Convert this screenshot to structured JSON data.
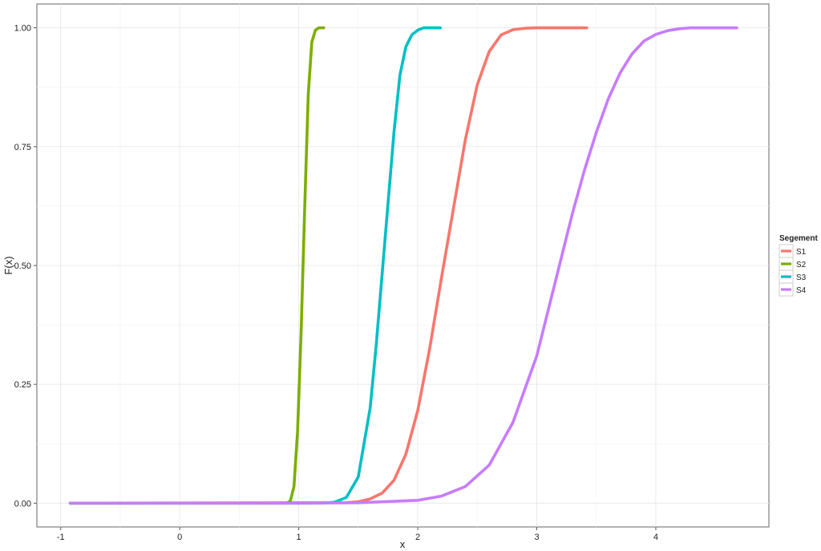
{
  "chart_data": {
    "type": "line",
    "xlabel": "x",
    "ylabel": "F(x)",
    "xlim": [
      -1.2,
      4.95
    ],
    "ylim": [
      -0.05,
      1.05
    ],
    "x_ticks": [
      -1,
      0,
      1,
      2,
      3,
      4
    ],
    "x_tick_labels": [
      "-1",
      "0",
      "1",
      "2",
      "3",
      "4"
    ],
    "y_ticks": [
      0,
      0.25,
      0.5,
      0.75,
      1
    ],
    "y_tick_labels": [
      "0.00",
      "0.25",
      "0.50",
      "0.75",
      "1.00"
    ],
    "grid": true,
    "legend": {
      "title": "Segement",
      "placement": "right"
    },
    "series": [
      {
        "name": "S1",
        "color": "#F8766D",
        "x": [
          -0.92,
          1.4,
          1.5,
          1.6,
          1.7,
          1.8,
          1.9,
          2.0,
          2.1,
          2.2,
          2.3,
          2.4,
          2.5,
          2.6,
          2.7,
          2.8,
          2.9,
          3.0,
          3.1,
          3.42
        ],
        "y": [
          0.0,
          0.001,
          0.003,
          0.009,
          0.021,
          0.048,
          0.103,
          0.195,
          0.325,
          0.475,
          0.62,
          0.765,
          0.88,
          0.95,
          0.985,
          0.996,
          0.999,
          1.0,
          1.0,
          1.0
        ]
      },
      {
        "name": "S2",
        "color": "#7CAE00",
        "x": [
          -0.92,
          0.9,
          0.93,
          0.96,
          0.99,
          1.02,
          1.05,
          1.08,
          1.11,
          1.14,
          1.17,
          1.21
        ],
        "y": [
          0.0,
          0.0,
          0.005,
          0.035,
          0.15,
          0.36,
          0.62,
          0.86,
          0.97,
          0.995,
          1.0,
          1.0
        ]
      },
      {
        "name": "S3",
        "color": "#00BFC4",
        "x": [
          -0.92,
          1.2,
          1.3,
          1.4,
          1.5,
          1.6,
          1.65,
          1.7,
          1.75,
          1.8,
          1.85,
          1.9,
          1.95,
          2.0,
          2.05,
          2.1,
          2.19
        ],
        "y": [
          0.0,
          0.0,
          0.002,
          0.012,
          0.055,
          0.2,
          0.33,
          0.48,
          0.63,
          0.78,
          0.9,
          0.96,
          0.985,
          0.995,
          1.0,
          1.0,
          1.0
        ]
      },
      {
        "name": "S4",
        "color": "#C77CFF",
        "x": [
          -0.92,
          1.0,
          1.5,
          2.0,
          2.2,
          2.4,
          2.6,
          2.8,
          3.0,
          3.1,
          3.2,
          3.3,
          3.4,
          3.5,
          3.6,
          3.7,
          3.8,
          3.9,
          4.0,
          4.1,
          4.2,
          4.3,
          4.4,
          4.68
        ],
        "y": [
          0.0,
          0.0,
          0.001,
          0.006,
          0.015,
          0.035,
          0.08,
          0.17,
          0.31,
          0.41,
          0.51,
          0.61,
          0.7,
          0.78,
          0.85,
          0.905,
          0.945,
          0.972,
          0.986,
          0.994,
          0.998,
          1.0,
          1.0,
          1.0
        ]
      }
    ]
  }
}
